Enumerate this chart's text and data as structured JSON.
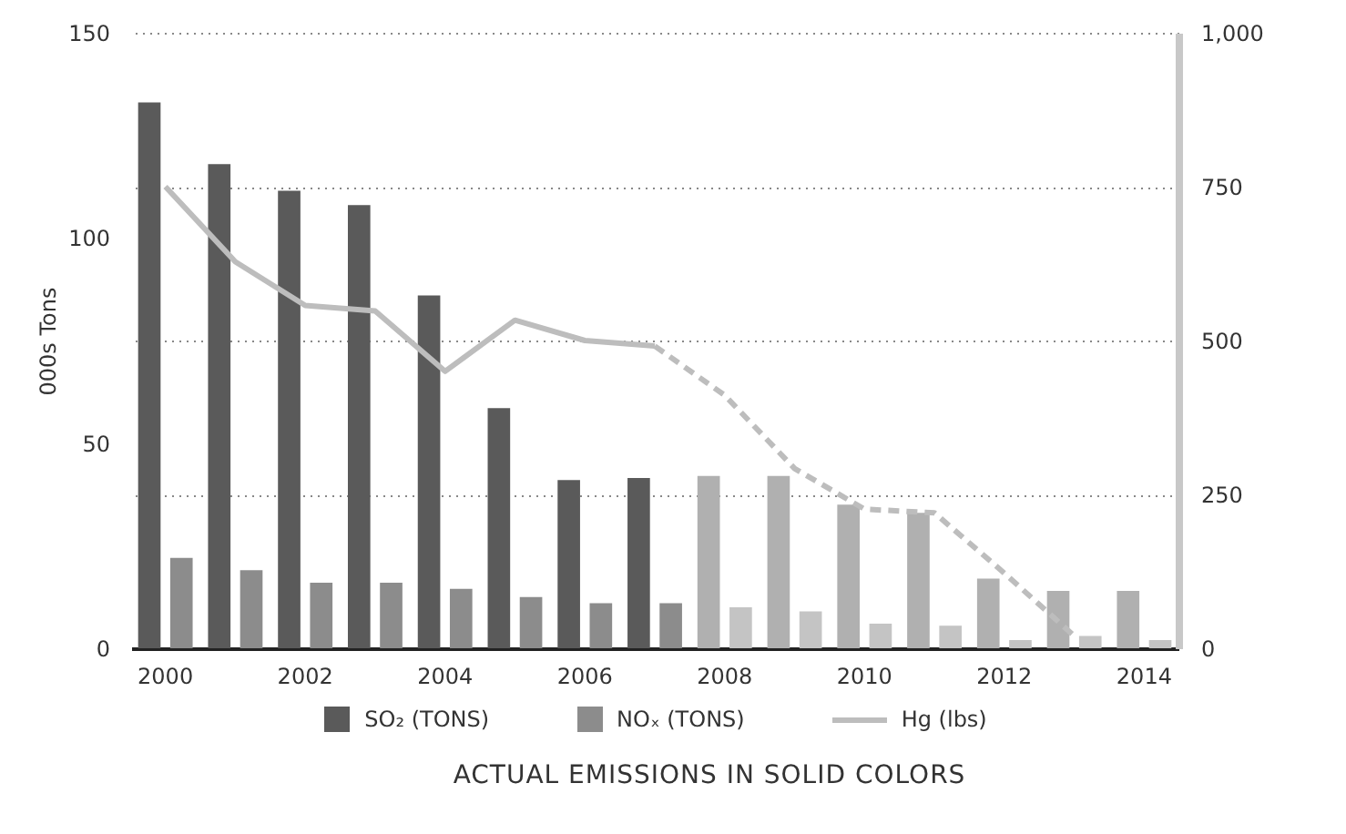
{
  "chart_data": {
    "type": "bar",
    "categories": [
      "2000",
      null,
      "2002",
      null,
      "2004",
      null,
      "2006",
      null,
      "2008",
      null,
      "2010",
      null,
      "2012",
      null,
      "2014"
    ],
    "ylabel": "000s Tons",
    "ylim": [
      0,
      150
    ],
    "yticks": [
      0,
      50,
      100,
      150
    ],
    "y2lim": [
      0,
      1000
    ],
    "y2ticks": [
      0,
      250,
      500,
      750,
      {
        "value": 1000,
        "label": "1,000"
      }
    ],
    "grid": "y2",
    "legend": "bottom",
    "marker": "none",
    "annotations": [
      "ACTUAL EMISSIONS IN SOLID COLORS"
    ],
    "series": [
      {
        "name": "SO₂ (TONS)",
        "color": "#5a5a5a",
        "colors": [
          "#5a5a5a",
          "#5a5a5a",
          "#5a5a5a",
          "#5a5a5a",
          "#5a5a5a",
          "#5a5a5a",
          "#5a5a5a",
          "#5a5a5a",
          "#b0b0b0",
          "#b0b0b0",
          "#b0b0b0",
          "#b0b0b0",
          "#b0b0b0",
          "#b0b0b0",
          "#b0b0b0"
        ],
        "values": [
          133,
          118,
          111.5,
          108,
          86,
          58.5,
          41,
          41.5,
          42,
          42,
          35,
          33,
          17,
          14,
          14
        ]
      },
      {
        "name": "NOₓ (TONS)",
        "color": "#8c8c8c",
        "colors": [
          "#8c8c8c",
          "#8c8c8c",
          "#8c8c8c",
          "#8c8c8c",
          "#8c8c8c",
          "#8c8c8c",
          "#8c8c8c",
          "#8c8c8c",
          "#c4c4c4",
          "#c4c4c4",
          "#c4c4c4",
          "#c4c4c4",
          "#c4c4c4",
          "#c4c4c4",
          "#c4c4c4"
        ],
        "values": [
          22,
          19,
          16,
          16,
          14.5,
          12.5,
          11,
          11,
          10,
          9,
          6,
          5.5,
          2,
          3,
          2
        ]
      },
      {
        "name": "Hg (lbs)",
        "type": "line",
        "axis": "y2",
        "color": "#bdbdbd",
        "line_style": "solid",
        "values": [
          750,
          628,
          557,
          548,
          450,
          533,
          500,
          491,
          null,
          null,
          null,
          null,
          null,
          null,
          null
        ]
      },
      {
        "type": "line",
        "axis": "y2",
        "color": "#bdbdbd",
        "line_style": "dashed",
        "values": [
          null,
          null,
          null,
          null,
          null,
          null,
          null,
          491,
          411,
          292,
          226,
          220,
          122,
          20,
          null
        ]
      }
    ]
  }
}
